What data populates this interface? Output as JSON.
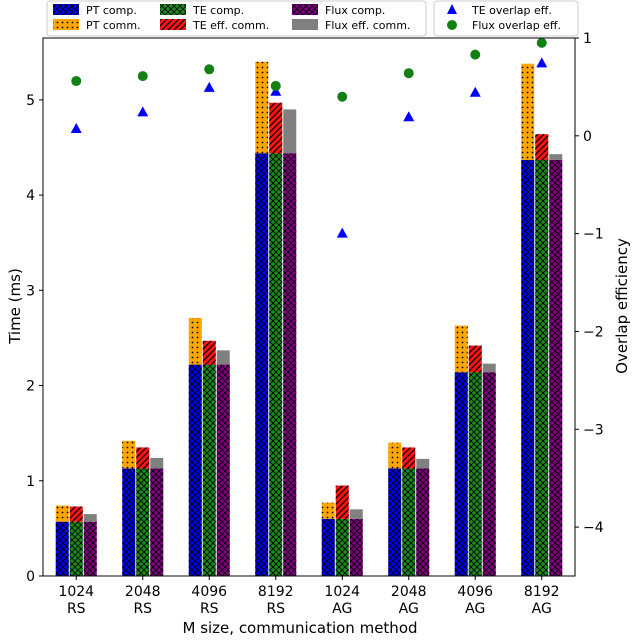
{
  "chart_data": {
    "type": "bar",
    "title": "",
    "xlabel": "M size, communication method",
    "ylabel": "Time (ms)",
    "y2label": "Overlap efficiency",
    "ylim": [
      0,
      5.65
    ],
    "y2lim": [
      -4.5,
      1
    ],
    "yticks": [
      "0",
      "1",
      "2",
      "3",
      "4",
      "5"
    ],
    "y2ticks": [
      "−4",
      "−3",
      "−2",
      "−1",
      "0",
      "1"
    ],
    "categories": [
      {
        "size": "1024",
        "method": "RS"
      },
      {
        "size": "2048",
        "method": "RS"
      },
      {
        "size": "4096",
        "method": "RS"
      },
      {
        "size": "8192",
        "method": "RS"
      },
      {
        "size": "1024",
        "method": "AG"
      },
      {
        "size": "2048",
        "method": "AG"
      },
      {
        "size": "4096",
        "method": "AG"
      },
      {
        "size": "8192",
        "method": "AG"
      }
    ],
    "series": [
      {
        "name": "PT comp.",
        "values": [
          0.57,
          1.13,
          2.22,
          4.44,
          0.6,
          1.13,
          2.14,
          4.37
        ]
      },
      {
        "name": "PT comm.",
        "values": [
          0.17,
          0.29,
          0.49,
          0.96,
          0.17,
          0.27,
          0.49,
          1.01
        ]
      },
      {
        "name": "TE comp.",
        "values": [
          0.57,
          1.13,
          2.22,
          4.44,
          0.6,
          1.13,
          2.14,
          4.37
        ]
      },
      {
        "name": "TE eff. comm.",
        "values": [
          0.16,
          0.22,
          0.25,
          0.53,
          0.35,
          0.22,
          0.28,
          0.27
        ]
      },
      {
        "name": "Flux comp.",
        "values": [
          0.57,
          1.13,
          2.22,
          4.44,
          0.6,
          1.13,
          2.14,
          4.37
        ]
      },
      {
        "name": "Flux eff. comm.",
        "values": [
          0.08,
          0.11,
          0.15,
          0.46,
          0.1,
          0.1,
          0.09,
          0.06
        ]
      }
    ],
    "overlap": [
      {
        "name": "TE overlap eff.",
        "values": [
          0.07,
          0.24,
          0.49,
          0.45,
          -1.0,
          0.19,
          0.44,
          0.74
        ]
      },
      {
        "name": "Flux overlap eff.",
        "values": [
          0.56,
          0.61,
          0.68,
          0.51,
          0.4,
          0.64,
          0.83,
          0.95
        ]
      }
    ],
    "colors": {
      "pt_comp": "#0000ee",
      "pt_comm": "#ffa500",
      "te_comp": "#1a8a1a",
      "te_comm": "#ff1111",
      "flux_comp": "#800080",
      "flux_comm": "#808080",
      "te_marker": "#0000ff",
      "flux_marker": "#138013"
    },
    "legend_placement": "top"
  }
}
